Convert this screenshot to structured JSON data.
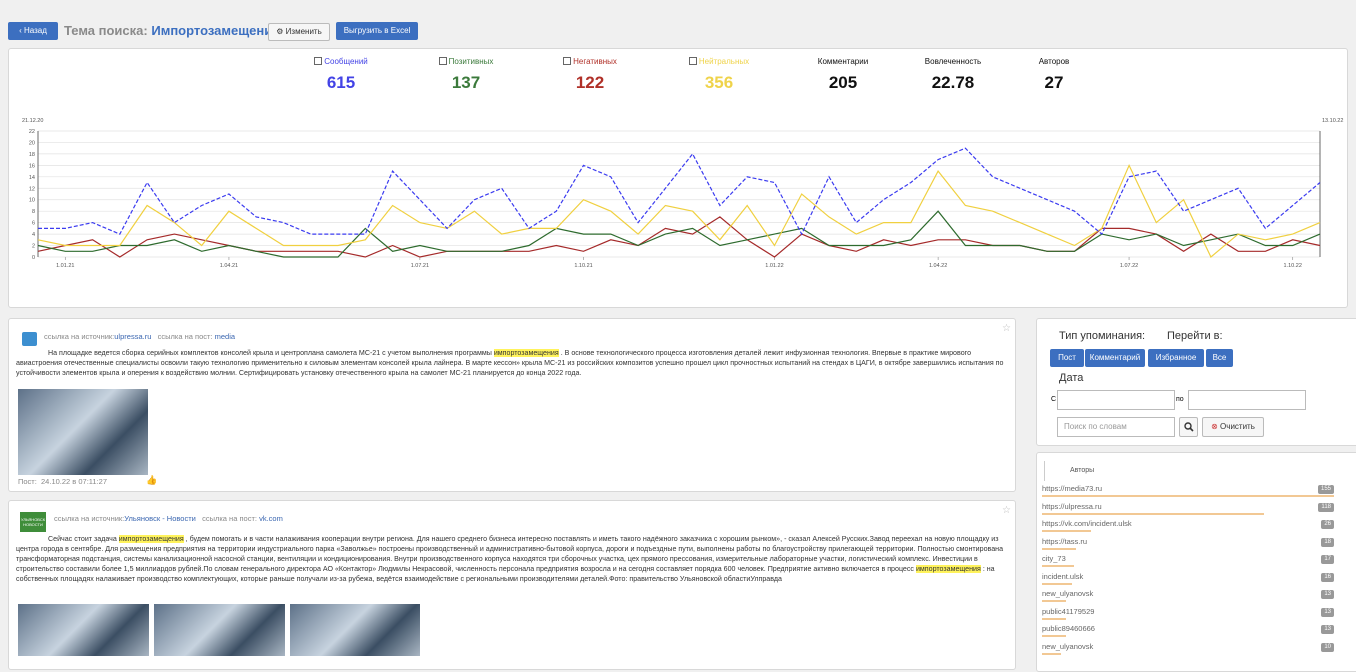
{
  "header": {
    "back": "Назад",
    "topic_label": "Тема поиска:",
    "topic": "Импортозамещение",
    "edit": "Изменить",
    "export": "Выгрузить в Excel"
  },
  "stats": [
    {
      "label": "Сообщений",
      "value": 615,
      "color": "#4343e6",
      "checked": true
    },
    {
      "label": "Позитивных",
      "value": 137,
      "color": "#3b7a3b",
      "checked": true
    },
    {
      "label": "Негативных",
      "value": 122,
      "color": "#b03028",
      "checked": true
    },
    {
      "label": "Нейтральных",
      "value": 356,
      "color": "#efd34a",
      "checked": true
    },
    {
      "label": "Комментарии",
      "value": 205,
      "color": "#111111",
      "checked": false
    },
    {
      "label": "Вовлеченность",
      "value": 22.78,
      "color": "#111111",
      "checked": false
    },
    {
      "label": "Авторов",
      "value": 27,
      "color": "#111111",
      "checked": false
    }
  ],
  "chart_data": {
    "type": "line",
    "range_labels": [
      "21.12.20",
      "13.10.22"
    ],
    "categories": [
      null,
      "1.01.21",
      null,
      null,
      null,
      null,
      null,
      "1.04.21",
      null,
      null,
      null,
      null,
      null,
      null,
      "1.07.21",
      null,
      null,
      null,
      null,
      null,
      "1.10.21",
      null,
      null,
      null,
      null,
      null,
      null,
      "1.01.22",
      null,
      null,
      null,
      null,
      null,
      "1.04.22",
      null,
      null,
      null,
      null,
      null,
      null,
      "1.07.22",
      null,
      null,
      null,
      null,
      null,
      "1.10.22",
      null
    ],
    "ylim": [
      0,
      22
    ],
    "yticks": [
      0,
      2,
      4,
      6,
      8,
      10,
      12,
      14,
      16,
      18,
      20,
      22
    ],
    "grid": true,
    "series": [
      {
        "color": "#3b3bf0",
        "dash": true,
        "values": [
          5,
          5,
          6,
          4,
          13,
          6,
          9,
          11,
          7,
          6,
          4,
          4,
          4,
          15,
          10,
          5,
          10,
          12,
          5,
          8,
          16,
          14,
          6,
          12,
          18,
          9,
          14,
          13,
          4,
          14,
          6,
          10,
          13,
          17,
          19,
          14,
          12,
          10,
          8,
          4,
          14,
          15,
          8,
          10,
          12,
          5,
          9,
          13
        ]
      },
      {
        "color": "#f0d040",
        "dash": false,
        "values": [
          3,
          2,
          2,
          2,
          9,
          6,
          2,
          8,
          5,
          2,
          2,
          2,
          3,
          9,
          6,
          5,
          8,
          4,
          5,
          5,
          10,
          8,
          4,
          9,
          8,
          3,
          9,
          2,
          11,
          7,
          4,
          6,
          6,
          15,
          9,
          8,
          6,
          4,
          2,
          5,
          16,
          6,
          10,
          0,
          4,
          3,
          4,
          6
        ]
      },
      {
        "color": "#2e6b2e",
        "dash": false,
        "values": [
          2,
          1,
          1,
          2,
          2,
          3,
          1,
          2,
          1,
          0,
          0,
          0,
          5,
          1,
          2,
          1,
          1,
          1,
          2,
          5,
          4,
          4,
          2,
          4,
          5,
          2,
          3,
          4,
          5,
          2,
          2,
          2,
          3,
          8,
          2,
          2,
          2,
          1,
          1,
          4,
          3,
          4,
          2,
          3,
          4,
          2,
          2,
          4
        ]
      },
      {
        "color": "#a52a2a",
        "dash": false,
        "values": [
          1,
          2,
          3,
          0,
          3,
          4,
          3,
          2,
          1,
          1,
          1,
          1,
          0,
          2,
          0,
          1,
          1,
          1,
          1,
          2,
          1,
          3,
          2,
          5,
          4,
          7,
          3,
          0,
          4,
          2,
          1,
          3,
          2,
          3,
          3,
          2,
          2,
          1,
          1,
          5,
          5,
          4,
          1,
          4,
          1,
          1,
          3,
          2
        ]
      }
    ]
  },
  "posts": [
    {
      "source_label": "ссылка на источник:",
      "source": "ulpressa.ru",
      "post_label": "ссылка на пост:",
      "post_link": "media",
      "text": [
        {
          "text": "На площадке ведется сборка серийных комплектов консолей крыла и центроплана самолета МС-21 с учетом выполнения программы "
        },
        {
          "text": "импортозамещения",
          "highlight": true
        },
        {
          "text": " . В основе технологического процесса изготовления деталей лежит инфузионная технология. Впервые в практике мирового авиастроения отечественные специалисты освоили такую технологию применительно к силовым элементам консолей крыла лайнера. В марте кессон» крыла МС-21 из российских композитов успешно прошел цикл прочностных испытаний на стендах в ЦАГИ, в октябре завершились испытания по устойчивости элементов крыла и оперения к воздействию молнии. Сертифицировать установку отечественного крыла на самолет МС-21 планируется до конца 2022 года."
        }
      ],
      "footer_label": "Пост:",
      "footer_date": "24.10.22 в 07:11:27"
    },
    {
      "source_label": "ссылка на источник:",
      "source": "Ульяновск - Новости",
      "post_label": "ссылка на пост:",
      "post_link": "vk.com",
      "logo": "УЛЬЯНОВСК НОВОСТИ",
      "text": [
        {
          "text": "Сейчас стоит задача "
        },
        {
          "text": "импортозамещения",
          "highlight": true
        },
        {
          "text": " , будем помогать и в части налаживания кооперации внутри региона. Для нашего среднего бизнеса интересно поставлять и иметь такого надёжного заказчика с хорошим рынком», - сказал Алексей Русских.Завод переехал на новую площадку из центра города в сентябре. Для размещения предприятия на территории индустриального парка «Заволжье» построены производственный и административно-бытовой корпуса, дороги и подъездные пути, выполнены работы по благоустройству прилегающей территории. Полностью смонтирована трансформаторная подстанция, системы канализационной насосной станции, вентиляции и кондиционирования. Внутри производственного корпуса находятся три сборочных участка, цех прямого прессования, измерительные лабораторные участки, логистический комплекс. Инвестиции в строительство составили более 1,5 миллиардов рублей.По словам генерального директора АО «Контактор» Людмилы Некрасовой, численность персонала предприятия возросла и на сегодня составляет порядка 600 человек. Предприятие активно включается в процесс "
        },
        {
          "text": "импортозамещения",
          "highlight": true
        },
        {
          "text": " : на собственных площадях налаживает производство комплектующих, которые раньше получали из-за рубежа, ведётся взаимодействие с региональными производителями деталей.Фото: правительство Ульяновской областиУлправда"
        }
      ]
    }
  ],
  "filters": {
    "type_label": "Тип упоминания:",
    "goto_label": "Перейти в:",
    "buttons": [
      "Пост",
      "Комментарий",
      "Избранное",
      "Все"
    ],
    "date_label": "Дата",
    "from": "С",
    "to": "по",
    "search_placeholder": "Поиск по словам",
    "clear": "Очистить"
  },
  "authors": {
    "title": "Авторы",
    "items": [
      {
        "name": "https://media73.ru",
        "count": 155
      },
      {
        "name": "https://ulpressa.ru",
        "count": 118
      },
      {
        "name": "https://vk.com/incident.ulsk",
        "count": 26
      },
      {
        "name": "https://tass.ru",
        "count": 18
      },
      {
        "name": "city_73",
        "count": 17
      },
      {
        "name": "incident.ulsk",
        "count": 16
      },
      {
        "name": "new_ulyanovsk",
        "count": 13
      },
      {
        "name": "public41179529",
        "count": 13
      },
      {
        "name": "public89460666",
        "count": 13
      },
      {
        "name": "new_ulyanovsk",
        "count": 10
      }
    ]
  }
}
